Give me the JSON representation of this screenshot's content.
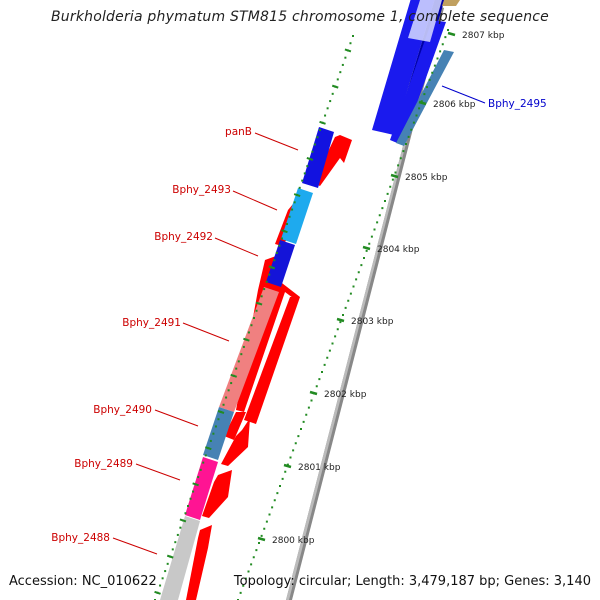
{
  "title": "Burkholderia phymatum STM815 chromosome 1, complete sequence",
  "accession": "Accession: NC_010622",
  "summary": "Topology: circular; Length: 3,479,187 bp; Genes: 3,140",
  "scale_ticks": [
    {
      "label": "2807 kbp",
      "kbp": 2807
    },
    {
      "label": "2806 kbp",
      "kbp": 2806
    },
    {
      "label": "2805 kbp",
      "kbp": 2805
    },
    {
      "label": "2804 kbp",
      "kbp": 2804
    },
    {
      "label": "2803 kbp",
      "kbp": 2803
    },
    {
      "label": "2802 kbp",
      "kbp": 2802
    },
    {
      "label": "2801 kbp",
      "kbp": 2801
    },
    {
      "label": "2800 kbp",
      "kbp": 2800
    }
  ],
  "gene_labels": [
    {
      "name": "Bphy_2495",
      "color": "#0000cc"
    },
    {
      "name": "panB",
      "color": "#cc0000"
    },
    {
      "name": "Bphy_2493",
      "color": "#cc0000"
    },
    {
      "name": "Bphy_2492",
      "color": "#cc0000"
    },
    {
      "name": "Bphy_2491",
      "color": "#cc0000"
    },
    {
      "name": "Bphy_2490",
      "color": "#cc0000"
    },
    {
      "name": "Bphy_2489",
      "color": "#cc0000"
    },
    {
      "name": "Bphy_2488",
      "color": "#cc0000"
    }
  ],
  "colors": {
    "backbone": "#888888",
    "forward_cds": "#ff0000",
    "tick_green": "#228b22"
  }
}
